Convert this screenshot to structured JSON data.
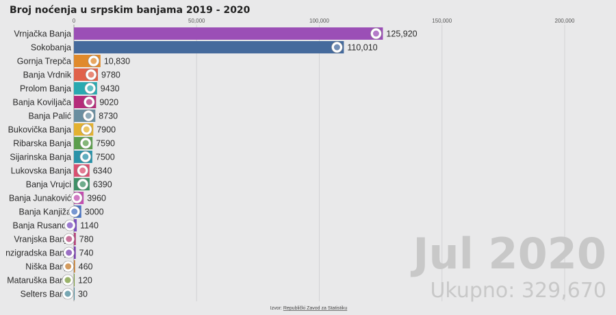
{
  "chart_data": {
    "type": "bar",
    "orientation": "horizontal",
    "title": "Broj noćenja u srpskim banjama 2019 - 2020",
    "xlim": [
      0,
      220000
    ],
    "xticks": [
      0,
      50000,
      100000,
      150000,
      200000
    ],
    "xtick_labels": [
      "0",
      "50,000",
      "100,000",
      "150,000",
      "200,000"
    ],
    "grid": true,
    "categories": [
      "Vrnjačka Banja",
      "Sokobanja",
      "Gornja Trepča",
      "Banja Vrdnik",
      "Prolom Banja",
      "Banja Koviljača",
      "Banja Palić",
      "Bukovička Banja",
      "Ribarska Banja",
      "Sijarinska Banja",
      "Lukovska Banja",
      "Banja Vrujci",
      "Banja Junaković",
      "Banja Kanjiža",
      "Banja Rusanda",
      "Vranjska Banja",
      "nzigradska Banja",
      "Niška Banja",
      "Mataruška Banja",
      "Selters Banja"
    ],
    "values": [
      125920,
      110010,
      10830,
      9780,
      9430,
      9020,
      8730,
      7900,
      7590,
      7500,
      6340,
      6390,
      3960,
      3000,
      1140,
      780,
      740,
      460,
      120,
      30
    ],
    "value_labels": [
      "125,920",
      "110,010",
      "10,830",
      "9780",
      "9430",
      "9020",
      "8730",
      "7900",
      "7590",
      "7500",
      "6340",
      "6390",
      "3960",
      "3000",
      "1140",
      "780",
      "740",
      "460",
      "120",
      "30"
    ],
    "colors": [
      "#9b4fb6",
      "#456a9c",
      "#e08a2c",
      "#e0614a",
      "#2aa9b0",
      "#b52b7a",
      "#6a8ea0",
      "#e3b130",
      "#5c9e4d",
      "#2a92a8",
      "#d94f70",
      "#3f8f66",
      "#c24fb0",
      "#4b74c2",
      "#7b4fc0",
      "#b5447a",
      "#7a3fb0",
      "#c47a2a",
      "#7a9a3a",
      "#4a8a9a"
    ],
    "period": "Jul 2020",
    "total_label": "Ukupno: 329,670",
    "source_prefix": "Izvor:",
    "source_link": "Republički Zavod za Statistiku"
  }
}
